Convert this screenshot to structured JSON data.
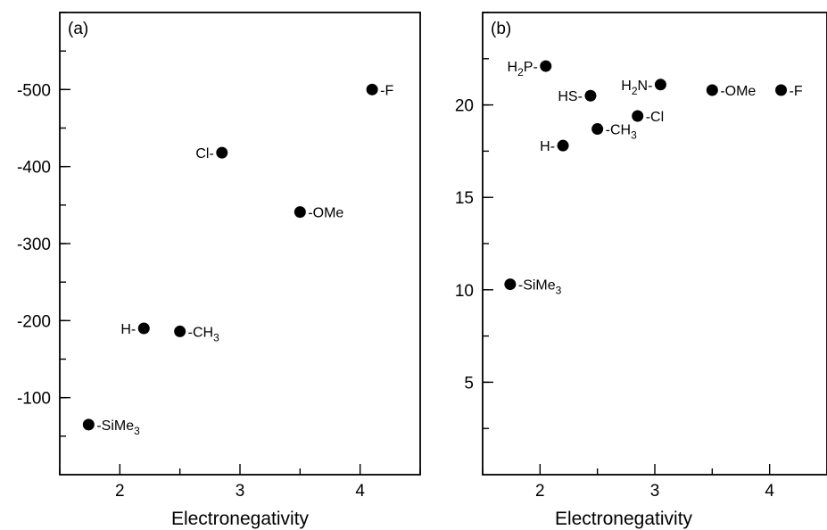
{
  "chart_data": [
    {
      "type": "scatter",
      "panel_label": "(a)",
      "xlabel": "Electronegativity",
      "ylabel": "",
      "xlim": [
        1.5,
        4.5
      ],
      "ylim": [
        0,
        -600
      ],
      "x_ticks": [
        2,
        3,
        4
      ],
      "y_ticks": [
        -100,
        -200,
        -300,
        -400,
        -500
      ],
      "points": [
        {
          "label": "-F",
          "x": 4.1,
          "y": -500,
          "label_side": "right"
        },
        {
          "label": "Cl-",
          "x": 2.85,
          "y": -418,
          "label_side": "left"
        },
        {
          "label": "-OMe",
          "x": 3.5,
          "y": -341,
          "label_side": "right"
        },
        {
          "label": "H-",
          "x": 2.2,
          "y": -190,
          "label_side": "left"
        },
        {
          "label": "-CH3",
          "x": 2.5,
          "y": -186,
          "label_side": "right"
        },
        {
          "label": "-SiMe3",
          "x": 1.74,
          "y": -65,
          "label_side": "right"
        }
      ]
    },
    {
      "type": "scatter",
      "panel_label": "(b)",
      "xlabel": "Electronegativity",
      "ylabel": "",
      "xlim": [
        1.5,
        4.5
      ],
      "ylim": [
        0,
        25
      ],
      "x_ticks": [
        2,
        3,
        4
      ],
      "y_ticks": [
        5,
        10,
        15,
        20
      ],
      "points": [
        {
          "label": "H2P-",
          "x": 2.05,
          "y": 22.1,
          "label_side": "left"
        },
        {
          "label": "H2N-",
          "x": 3.05,
          "y": 21.1,
          "label_side": "left"
        },
        {
          "label": "-OMe",
          "x": 3.5,
          "y": 20.8,
          "label_side": "right"
        },
        {
          "label": "-F",
          "x": 4.1,
          "y": 20.8,
          "label_side": "right"
        },
        {
          "label": "HS-",
          "x": 2.44,
          "y": 20.5,
          "label_side": "left"
        },
        {
          "label": "-Cl",
          "x": 2.85,
          "y": 19.4,
          "label_side": "right"
        },
        {
          "label": "-CH3",
          "x": 2.5,
          "y": 18.7,
          "label_side": "right"
        },
        {
          "label": "H-",
          "x": 2.2,
          "y": 17.8,
          "label_side": "left"
        },
        {
          "label": "-SiMe3",
          "x": 1.74,
          "y": 10.3,
          "label_side": "right"
        }
      ]
    }
  ]
}
